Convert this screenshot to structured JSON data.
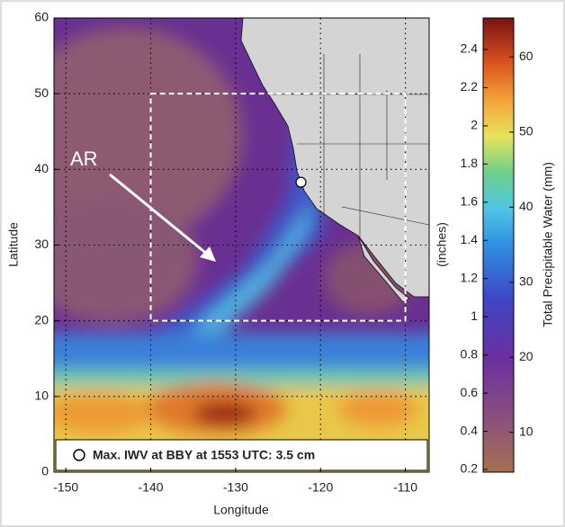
{
  "chart_data": {
    "type": "map",
    "xlabel": "Longitude",
    "ylabel": "Latitude",
    "xlim": [
      -151.4,
      -107.2
    ],
    "xticks": [
      -150,
      -140,
      -130,
      -120,
      -110
    ],
    "ylim": [
      0,
      60
    ],
    "yticks": [
      0,
      10,
      20,
      30,
      40,
      50,
      60
    ],
    "grid": true,
    "region_box": {
      "lon": [
        -140,
        -110
      ],
      "lat": [
        20,
        50
      ]
    },
    "bby_point": {
      "lon": -122.3,
      "lat": 38.3
    },
    "annotation": "AR",
    "legend_text": "Max. IWV at BBY at 1553 UTC: 3.5 cm",
    "colorbar": {
      "ylabel": "(inches)",
      "ylim": [
        0.186,
        2.565
      ],
      "yticks": [
        0.2,
        0.4,
        0.6,
        0.8,
        1,
        1.2,
        1.4,
        1.6,
        1.8,
        2,
        2.2,
        2.4
      ],
      "y2label": "Total Precipitable Water (mm)",
      "y2lim": [
        4.7,
        65.2
      ],
      "y2ticks": [
        10,
        20,
        30,
        40,
        50,
        60
      ]
    }
  }
}
